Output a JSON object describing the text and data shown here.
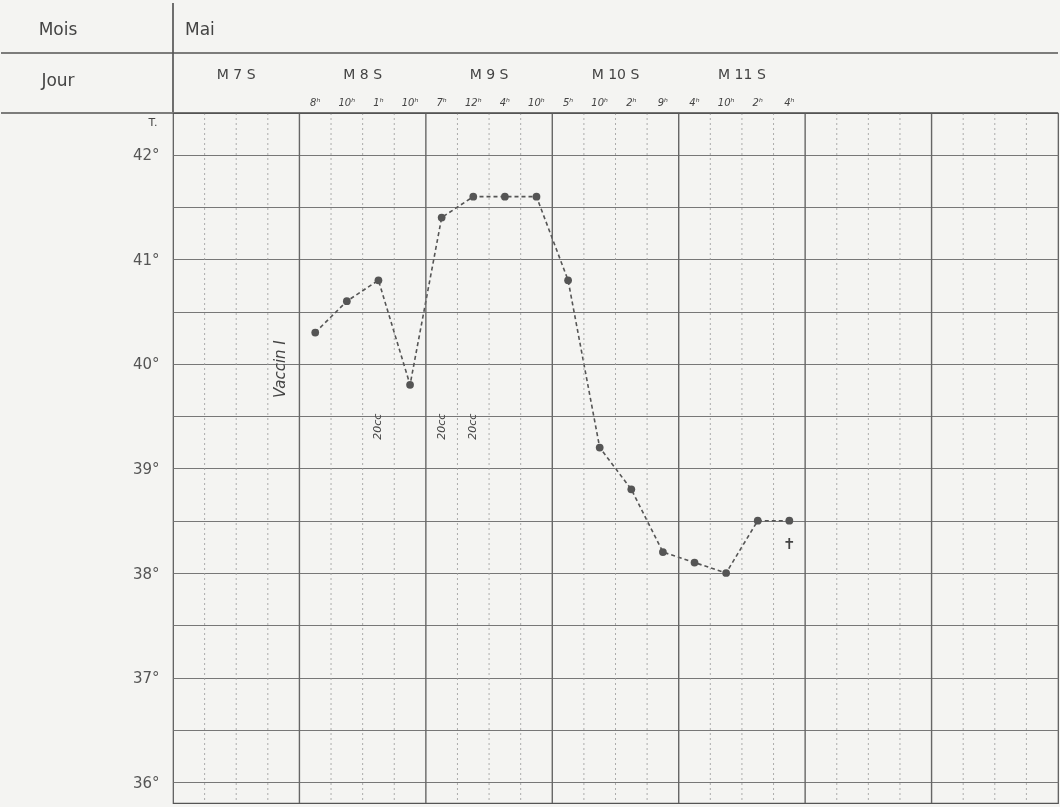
{
  "chart_data": {
    "type": "line",
    "categories": [
      null,
      null,
      null,
      null,
      "8ʰ",
      "10ʰ",
      "1ʰ",
      "10ʰ",
      "7ʰ",
      "12ʰ",
      "4ʰ",
      "10ʰ",
      "5ʰ",
      "10ʰ",
      "2ʰ",
      "9ʰ",
      "4ʰ",
      "10ʰ",
      "2ʰ",
      "4ʰ",
      null,
      null,
      null,
      null,
      null,
      null,
      null,
      null
    ],
    "values": [
      null,
      null,
      null,
      null,
      40.3,
      40.6,
      40.8,
      39.8,
      41.4,
      41.6,
      41.6,
      41.6,
      40.8,
      39.2,
      38.8,
      38.2,
      38.1,
      38.0,
      38.5,
      38.5,
      null,
      null,
      null,
      null,
      null,
      null,
      null,
      null
    ],
    "color": "#555555",
    "ylim": [
      35.8,
      42.4
    ],
    "yticks": [
      {
        "value": 36,
        "label": "36°"
      },
      {
        "value": 36.5,
        "label": null
      },
      {
        "value": 37,
        "label": "37°"
      },
      {
        "value": 37.5,
        "label": null
      },
      {
        "value": 38,
        "label": "38°"
      },
      {
        "value": 38.5,
        "label": null
      },
      {
        "value": 39,
        "label": "39°"
      },
      {
        "value": 39.5,
        "label": null
      },
      {
        "value": 40,
        "label": "40°"
      },
      {
        "value": 40.5,
        "label": null
      },
      {
        "value": 41,
        "label": "41°"
      },
      {
        "value": 41.5,
        "label": null
      },
      {
        "value": 42,
        "label": "42°"
      }
    ],
    "grid": true,
    "marker": "circle",
    "line_style": "dashed",
    "annotations": [
      "Mois",
      "Mai",
      "Jour",
      "M 7 S",
      "M 8 S",
      "M 9 S",
      "M 10 S",
      "M 11 S",
      "T.",
      "Vaccin I",
      "20cc",
      "20cc",
      "20cc",
      "✝"
    ]
  }
}
